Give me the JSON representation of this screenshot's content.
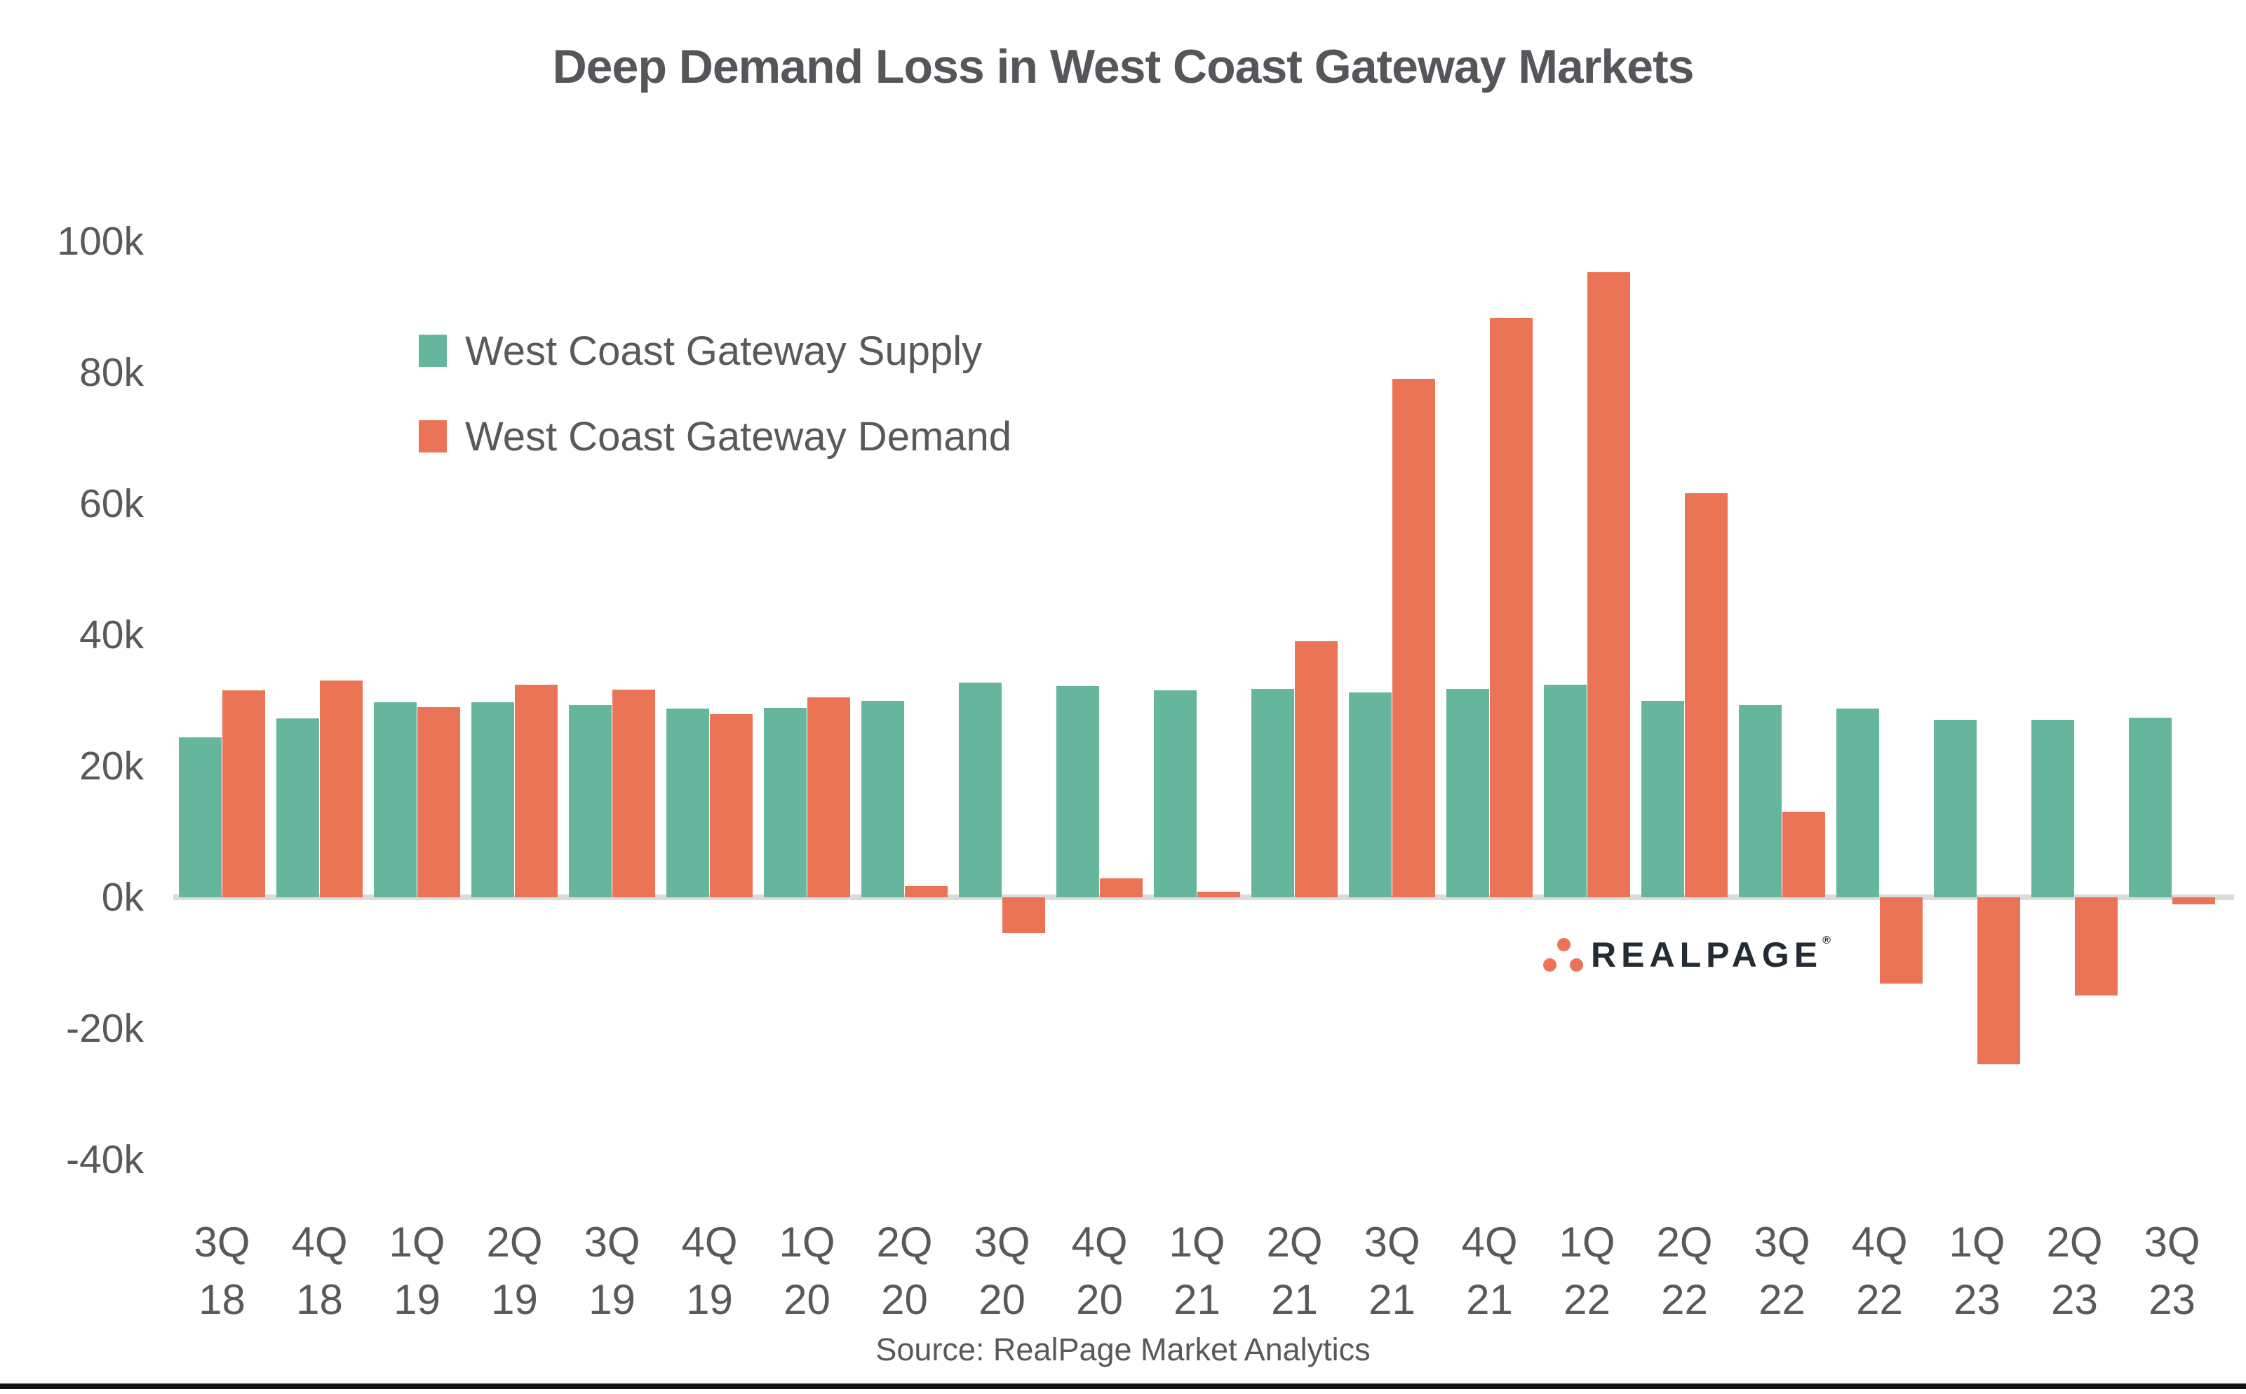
{
  "title": "Deep Demand Loss in West Coast Gateway Markets",
  "source": "Source: RealPage Market Analytics",
  "logo": {
    "text": "REALPAGE",
    "registered": "®"
  },
  "colors": {
    "supply": "#66B69D",
    "demand": "#EC7456",
    "text_gray": "#58595B",
    "axis_line": "#DBDBDB",
    "logo_text": "#252B33",
    "logo_dot": "#EC7456",
    "bottom_rule": "#141414"
  },
  "legend": [
    {
      "label": "West Coast Gateway Supply",
      "color": "#66B69D"
    },
    {
      "label": "West Coast Gateway Demand",
      "color": "#EC7456"
    }
  ],
  "y_axis": {
    "ticks": [
      {
        "label": "100k",
        "value": 100
      },
      {
        "label": "80k",
        "value": 80
      },
      {
        "label": "60k",
        "value": 60
      },
      {
        "label": "40k",
        "value": 40
      },
      {
        "label": "20k",
        "value": 20
      },
      {
        "label": "0k",
        "value": 0
      },
      {
        "label": "-20k",
        "value": -20
      },
      {
        "label": "-40k",
        "value": -40
      }
    ]
  },
  "chart_data": {
    "type": "bar",
    "title": "Deep Demand Loss in West Coast Gateway Markets",
    "categories": [
      "3Q 18",
      "4Q 18",
      "1Q 19",
      "2Q 19",
      "3Q 19",
      "4Q 19",
      "1Q 20",
      "2Q 20",
      "3Q 20",
      "4Q 20",
      "1Q 21",
      "2Q 21",
      "3Q 21",
      "4Q 21",
      "1Q 22",
      "2Q 22",
      "3Q 22",
      "4Q 22",
      "1Q 23",
      "2Q 23",
      "3Q 23"
    ],
    "series": [
      {
        "name": "West Coast Gateway Supply",
        "color": "#66B69D",
        "values": [
          24400,
          27300,
          29700,
          29700,
          29300,
          28800,
          28900,
          30000,
          32700,
          32200,
          31500,
          31800,
          31200,
          31800,
          32400,
          29900,
          29300,
          28800,
          27100,
          27100,
          27400
        ]
      },
      {
        "name": "West Coast Gateway Demand",
        "color": "#EC7456",
        "values": [
          31600,
          33100,
          29000,
          32400,
          31700,
          27900,
          30500,
          1700,
          -5500,
          2900,
          900,
          39000,
          79000,
          88300,
          95300,
          61600,
          13000,
          -13200,
          -25500,
          -15000,
          -1100
        ]
      }
    ],
    "xlabel": "",
    "ylabel": "",
    "ylim": [
      -40000,
      100000
    ],
    "grid": false,
    "legend_position": "upper-left-inside"
  }
}
